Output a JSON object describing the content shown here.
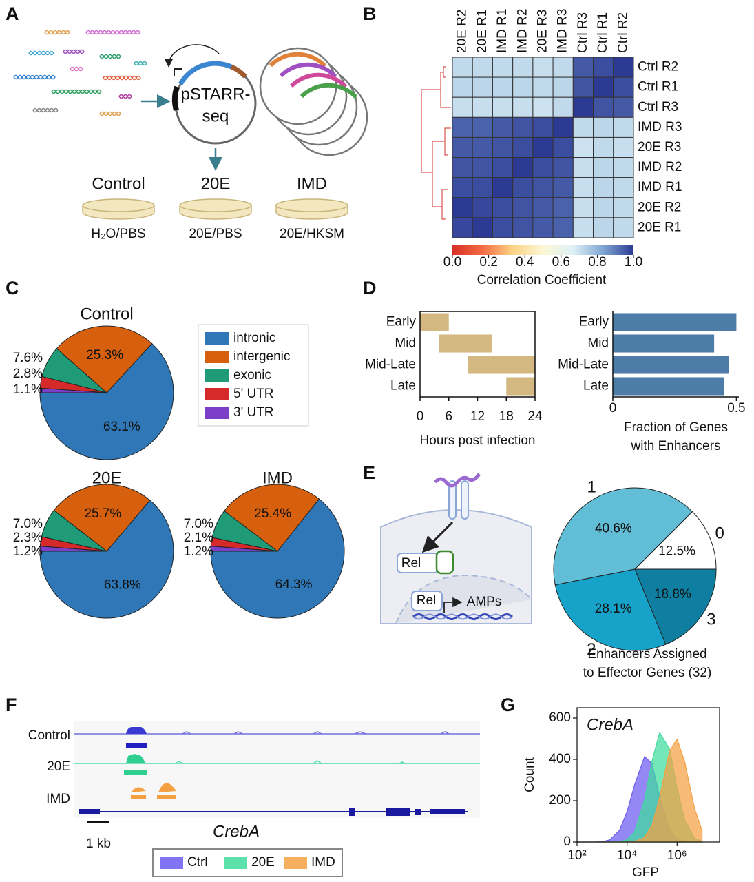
{
  "panel_labels": [
    "A",
    "B",
    "C",
    "D",
    "E",
    "F",
    "G"
  ],
  "panel_a": {
    "plasmid": [
      "pSTARR-",
      "seq"
    ],
    "conditions": [
      "Control",
      "20E",
      "IMD"
    ],
    "treatments": [
      "H₂O/PBS",
      "20E/PBS",
      "20E/HKSM"
    ]
  },
  "panel_e": {
    "labels": [
      "Rel",
      "Rel",
      "AMPs"
    ]
  },
  "panel_f": {
    "tracks": [
      "Control",
      "20E",
      "IMD"
    ],
    "scale": "1 kb",
    "gene": "CrebA"
  },
  "chart_data": [
    {
      "type": "heatmap",
      "columns": [
        "20E R2",
        "20E R1",
        "IMD R1",
        "IMD R2",
        "20E R3",
        "IMD R3",
        "Ctrl R3",
        "Ctrl R1",
        "Ctrl R2"
      ],
      "rows": [
        "Ctrl R2",
        "Ctrl R1",
        "Ctrl R3",
        "IMD R3",
        "20E R3",
        "IMD R2",
        "IMD R1",
        "20E R2",
        "20E R1"
      ],
      "values": [
        [
          0.72,
          0.72,
          0.72,
          0.72,
          0.71,
          0.72,
          0.95,
          0.97,
          1.0
        ],
        [
          0.73,
          0.73,
          0.73,
          0.73,
          0.72,
          0.73,
          0.96,
          1.0,
          0.97
        ],
        [
          0.71,
          0.71,
          0.71,
          0.71,
          0.7,
          0.72,
          1.0,
          0.96,
          0.95
        ],
        [
          0.94,
          0.94,
          0.95,
          0.96,
          0.97,
          1.0,
          0.72,
          0.73,
          0.72
        ],
        [
          0.95,
          0.95,
          0.96,
          0.97,
          1.0,
          0.97,
          0.7,
          0.72,
          0.71
        ],
        [
          0.96,
          0.96,
          0.97,
          1.0,
          0.97,
          0.96,
          0.71,
          0.73,
          0.72
        ],
        [
          0.97,
          0.97,
          1.0,
          0.97,
          0.96,
          0.95,
          0.71,
          0.73,
          0.72
        ],
        [
          1.0,
          0.98,
          0.97,
          0.96,
          0.95,
          0.94,
          0.71,
          0.73,
          0.72
        ],
        [
          0.98,
          1.0,
          0.97,
          0.96,
          0.95,
          0.94,
          0.71,
          0.73,
          0.72
        ]
      ],
      "colorlim": [
        0,
        1
      ],
      "colormap": [
        "#d62f27",
        "#f46d43",
        "#fdd384",
        "#fbf7d4",
        "#dff1f7",
        "#7fa6d3",
        "#2c3a94"
      ],
      "cbar_ticks": [
        {
          "value": 0,
          "label": "0.0"
        },
        0.2,
        0.4,
        0.6,
        0.8,
        {
          "value": 1,
          "label": "1.0"
        }
      ],
      "cbar_label": "Correlation Coefficient"
    },
    {
      "type": "pie",
      "title": "Control",
      "categories": [
        "intronic",
        "intergenic",
        "exonic",
        "5' UTR",
        "3' UTR"
      ],
      "colors": [
        "#2f77b6",
        "#d6600d",
        "#1f9b77",
        "#d62a2a",
        "#7b3fc8"
      ],
      "values": [
        63.1,
        25.3,
        7.6,
        2.8,
        1.1
      ],
      "value_labels": [
        "63.1%",
        "25.3%",
        "7.6%",
        "2.8%",
        "1.1%"
      ],
      "startangle": 180,
      "counterclock": true,
      "legend": true
    },
    {
      "type": "pie",
      "title": "20E",
      "categories": [
        "intronic",
        "intergenic",
        "exonic",
        "5' UTR",
        "3' UTR"
      ],
      "colors": [
        "#2f77b6",
        "#d6600d",
        "#1f9b77",
        "#d62a2a",
        "#7b3fc8"
      ],
      "values": [
        63.8,
        25.7,
        7.0,
        2.3,
        1.2
      ],
      "value_labels": [
        "63.8%",
        "25.7%",
        "7.0%",
        "2.3%",
        "1.2%"
      ],
      "startangle": 180,
      "counterclock": true,
      "legend": false
    },
    {
      "type": "pie",
      "title": "IMD",
      "categories": [
        "intronic",
        "intergenic",
        "exonic",
        "5' UTR",
        "3' UTR"
      ],
      "colors": [
        "#2f77b6",
        "#d6600d",
        "#1f9b77",
        "#d62a2a",
        "#7b3fc8"
      ],
      "values": [
        64.3,
        25.4,
        7.0,
        2.1,
        1.2
      ],
      "value_labels": [
        "64.3%",
        "25.4%",
        "7.0%",
        "2.1%",
        "1.2%"
      ],
      "startangle": 180,
      "counterclock": true,
      "legend": false
    },
    {
      "type": "gantt",
      "categories": [
        "Early",
        "Mid",
        "Mid-Late",
        "Late"
      ],
      "starts": [
        0,
        4,
        10,
        18
      ],
      "ends": [
        6,
        15,
        24,
        24
      ],
      "color": "#d4b882",
      "xlim": [
        0,
        24
      ],
      "xticks": [
        0,
        6,
        12,
        18,
        24
      ],
      "xlabel": "Hours post infection",
      "frame": true
    },
    {
      "type": "bar",
      "orientation": "horizontal",
      "categories": [
        "Early",
        "Mid",
        "Mid-Late",
        "Late"
      ],
      "values": [
        0.5,
        0.41,
        0.47,
        0.45
      ],
      "color": "#4d7ca8",
      "xlim": [
        0,
        0.51
      ],
      "xticks": [
        0,
        0.5
      ],
      "xlabel": [
        "Fraction of Genes",
        "with Enhancers"
      ],
      "frame": false
    },
    {
      "type": "pie",
      "title": [
        "Enhancers Assigned",
        "to Effector Genes (32)"
      ],
      "categories": [
        "0",
        "1",
        "2",
        "3"
      ],
      "colors": [
        "#ffffff",
        "#62bdd6",
        "#17a2c9",
        "#0e7fa0"
      ],
      "values": [
        12.5,
        40.6,
        28.1,
        18.8
      ],
      "value_labels": [
        "12.5%",
        "40.6%",
        "28.1%",
        "18.8%"
      ],
      "startangle": 0,
      "counterclock": true,
      "category_labels": true
    },
    {
      "type": "area",
      "xlog": true,
      "x": [
        100,
        200,
        500,
        1000,
        2000,
        5000,
        10000,
        20000,
        50000,
        100000,
        200000,
        500000,
        1000000,
        2000000,
        5000000,
        10000000
      ],
      "series": [
        {
          "name": "Ctrl",
          "color": "#6b5cf0",
          "values": [
            0,
            0,
            0,
            2,
            10,
            57,
            147,
            277,
            413,
            380,
            220,
            60,
            15,
            3,
            0,
            0
          ]
        },
        {
          "name": "20E",
          "color": "#3fdc9c",
          "values": [
            0,
            0,
            0,
            0,
            0,
            2,
            11,
            48,
            203,
            392,
            529,
            451,
            263,
            107,
            18,
            3
          ]
        },
        {
          "name": "IMD",
          "color": "#f5a142",
          "values": [
            0,
            0,
            0,
            0,
            0,
            0,
            0,
            2,
            22,
            82,
            215,
            441,
            497,
            391,
            162,
            55
          ]
        }
      ],
      "xlim": [
        100,
        50000000
      ],
      "xticks": [
        {
          "value": 100,
          "label": "10²"
        },
        {
          "value": 10000,
          "label": "10⁴"
        },
        {
          "value": 1000000,
          "label": "10⁶"
        }
      ],
      "ylim": [
        0,
        650
      ],
      "yticks": [
        0,
        200,
        400,
        600
      ],
      "xlabel": "GFP",
      "ylabel": "Count",
      "annotation": "CrebA"
    }
  ]
}
